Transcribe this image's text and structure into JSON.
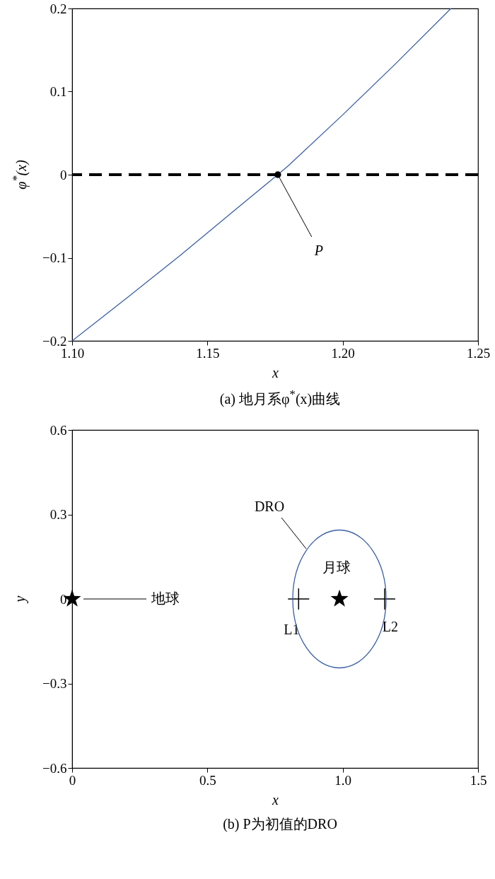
{
  "chart_data": [
    {
      "type": "line",
      "title": "(a) 地月系φ$^{*}$(x)曲线",
      "xlabel": "x",
      "ylabel": "φ$^{*}$(x)",
      "xlim": [
        1.1,
        1.25
      ],
      "ylim": [
        -0.2,
        0.2
      ],
      "xticks": [
        {
          "value": 1.1,
          "label": "1.10"
        },
        {
          "value": 1.15,
          "label": "1.15"
        },
        {
          "value": 1.2,
          "label": "1.20"
        },
        {
          "value": 1.25,
          "label": "1.25"
        }
      ],
      "yticks": [
        -0.2,
        -0.1,
        0,
        0.1,
        0.2
      ],
      "series": [
        {
          "color": "#3a5fa8",
          "x": [
            1.1,
            1.12,
            1.14,
            1.16,
            1.176,
            1.18,
            1.2,
            1.22,
            1.24
          ],
          "values": [
            -0.2,
            -0.149,
            -0.097,
            -0.043,
            0,
            0.011,
            0.072,
            0.135,
            0.2
          ]
        },
        {
          "type": "scatter",
          "marker": "circle",
          "color": "#000000",
          "x": [
            1.176
          ],
          "values": [
            0
          ]
        }
      ],
      "ref_lines": [
        {
          "axis": "y",
          "value": 0,
          "color": "#000000",
          "line_style": "dashed"
        }
      ],
      "annotations": [
        {
          "text": "P",
          "x": 1.176,
          "y": 0
        }
      ]
    },
    {
      "type": "scatter",
      "title": "(b) P为初值的DRO",
      "xlabel": "x",
      "ylabel": "y",
      "xlim": [
        0,
        1.5
      ],
      "ylim": [
        -0.6,
        0.6
      ],
      "xticks": [
        0,
        0.5,
        {
          "value": 1,
          "label": "1.0"
        },
        1.5
      ],
      "yticks": [
        -0.6,
        -0.3,
        0,
        0.3,
        0.6
      ],
      "series": [
        {
          "name": "地球",
          "marker": "star",
          "color": "#000000",
          "x": [
            0
          ],
          "values": [
            0
          ]
        },
        {
          "name": "月球",
          "marker": "star",
          "color": "#000000",
          "x": [
            0.988
          ],
          "values": [
            0
          ]
        },
        {
          "name": "L1",
          "marker": "cross",
          "color": "#000000",
          "x": [
            0.837
          ],
          "values": [
            0
          ]
        },
        {
          "name": "L2",
          "marker": "cross",
          "color": "#000000",
          "x": [
            1.155
          ],
          "values": [
            0
          ]
        }
      ],
      "annotations": [
        "DRO"
      ]
    }
  ]
}
